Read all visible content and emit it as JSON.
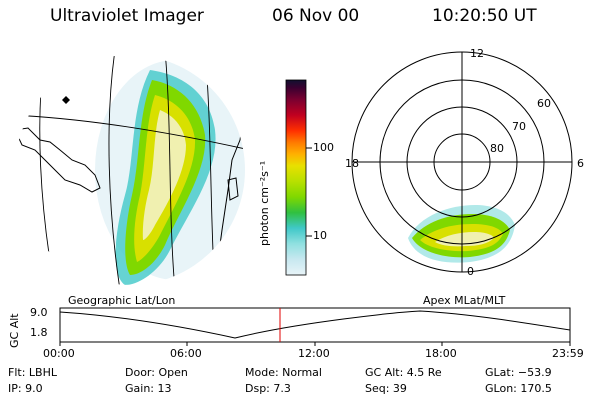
{
  "header": {
    "instrument": "Ultraviolet Imager",
    "date": "06 Nov 00",
    "time": "10:20:50 UT"
  },
  "geo_panel": {
    "label": "Geographic Lat/Lon"
  },
  "colorbar": {
    "unit_label": "photon cm⁻²s⁻¹",
    "ticks": [
      "100",
      "10"
    ],
    "colors": [
      "#101030",
      "#3a0030",
      "#7a0030",
      "#c00020",
      "#ff3000",
      "#ff7a00",
      "#ffb000",
      "#e8e000",
      "#b8e000",
      "#80d800",
      "#30c040",
      "#40c8a0",
      "#40d0d0",
      "#90e0e0",
      "#c8e8f0",
      "#e8f4f8"
    ]
  },
  "polar_panel": {
    "label": "Apex MLat/MLT",
    "hour_labels": {
      "top": "12",
      "left": "18",
      "right": "6",
      "bottom": "0"
    },
    "lat_labels": [
      "60",
      "70",
      "80"
    ]
  },
  "timeline": {
    "ylabel": "GC Alt",
    "ytick_top": "9.0",
    "ytick_bottom": "1.8",
    "xticks": [
      "00:00",
      "06:00",
      "12:00",
      "18:00",
      "23:59"
    ],
    "current_time_marker": "10:20:50"
  },
  "info": {
    "filter": "Flt: LBHL",
    "ip": "IP:  9.0",
    "door": "Door: Open",
    "gain": "Gain: 13",
    "mode": "Mode: Normal",
    "dsp": "Dsp:     7.3",
    "gc_alt": "GC Alt: 4.5 Re",
    "seq": "Seq: 39",
    "glat": "GLat: −53.9",
    "glon": "GLon: 170.5"
  }
}
